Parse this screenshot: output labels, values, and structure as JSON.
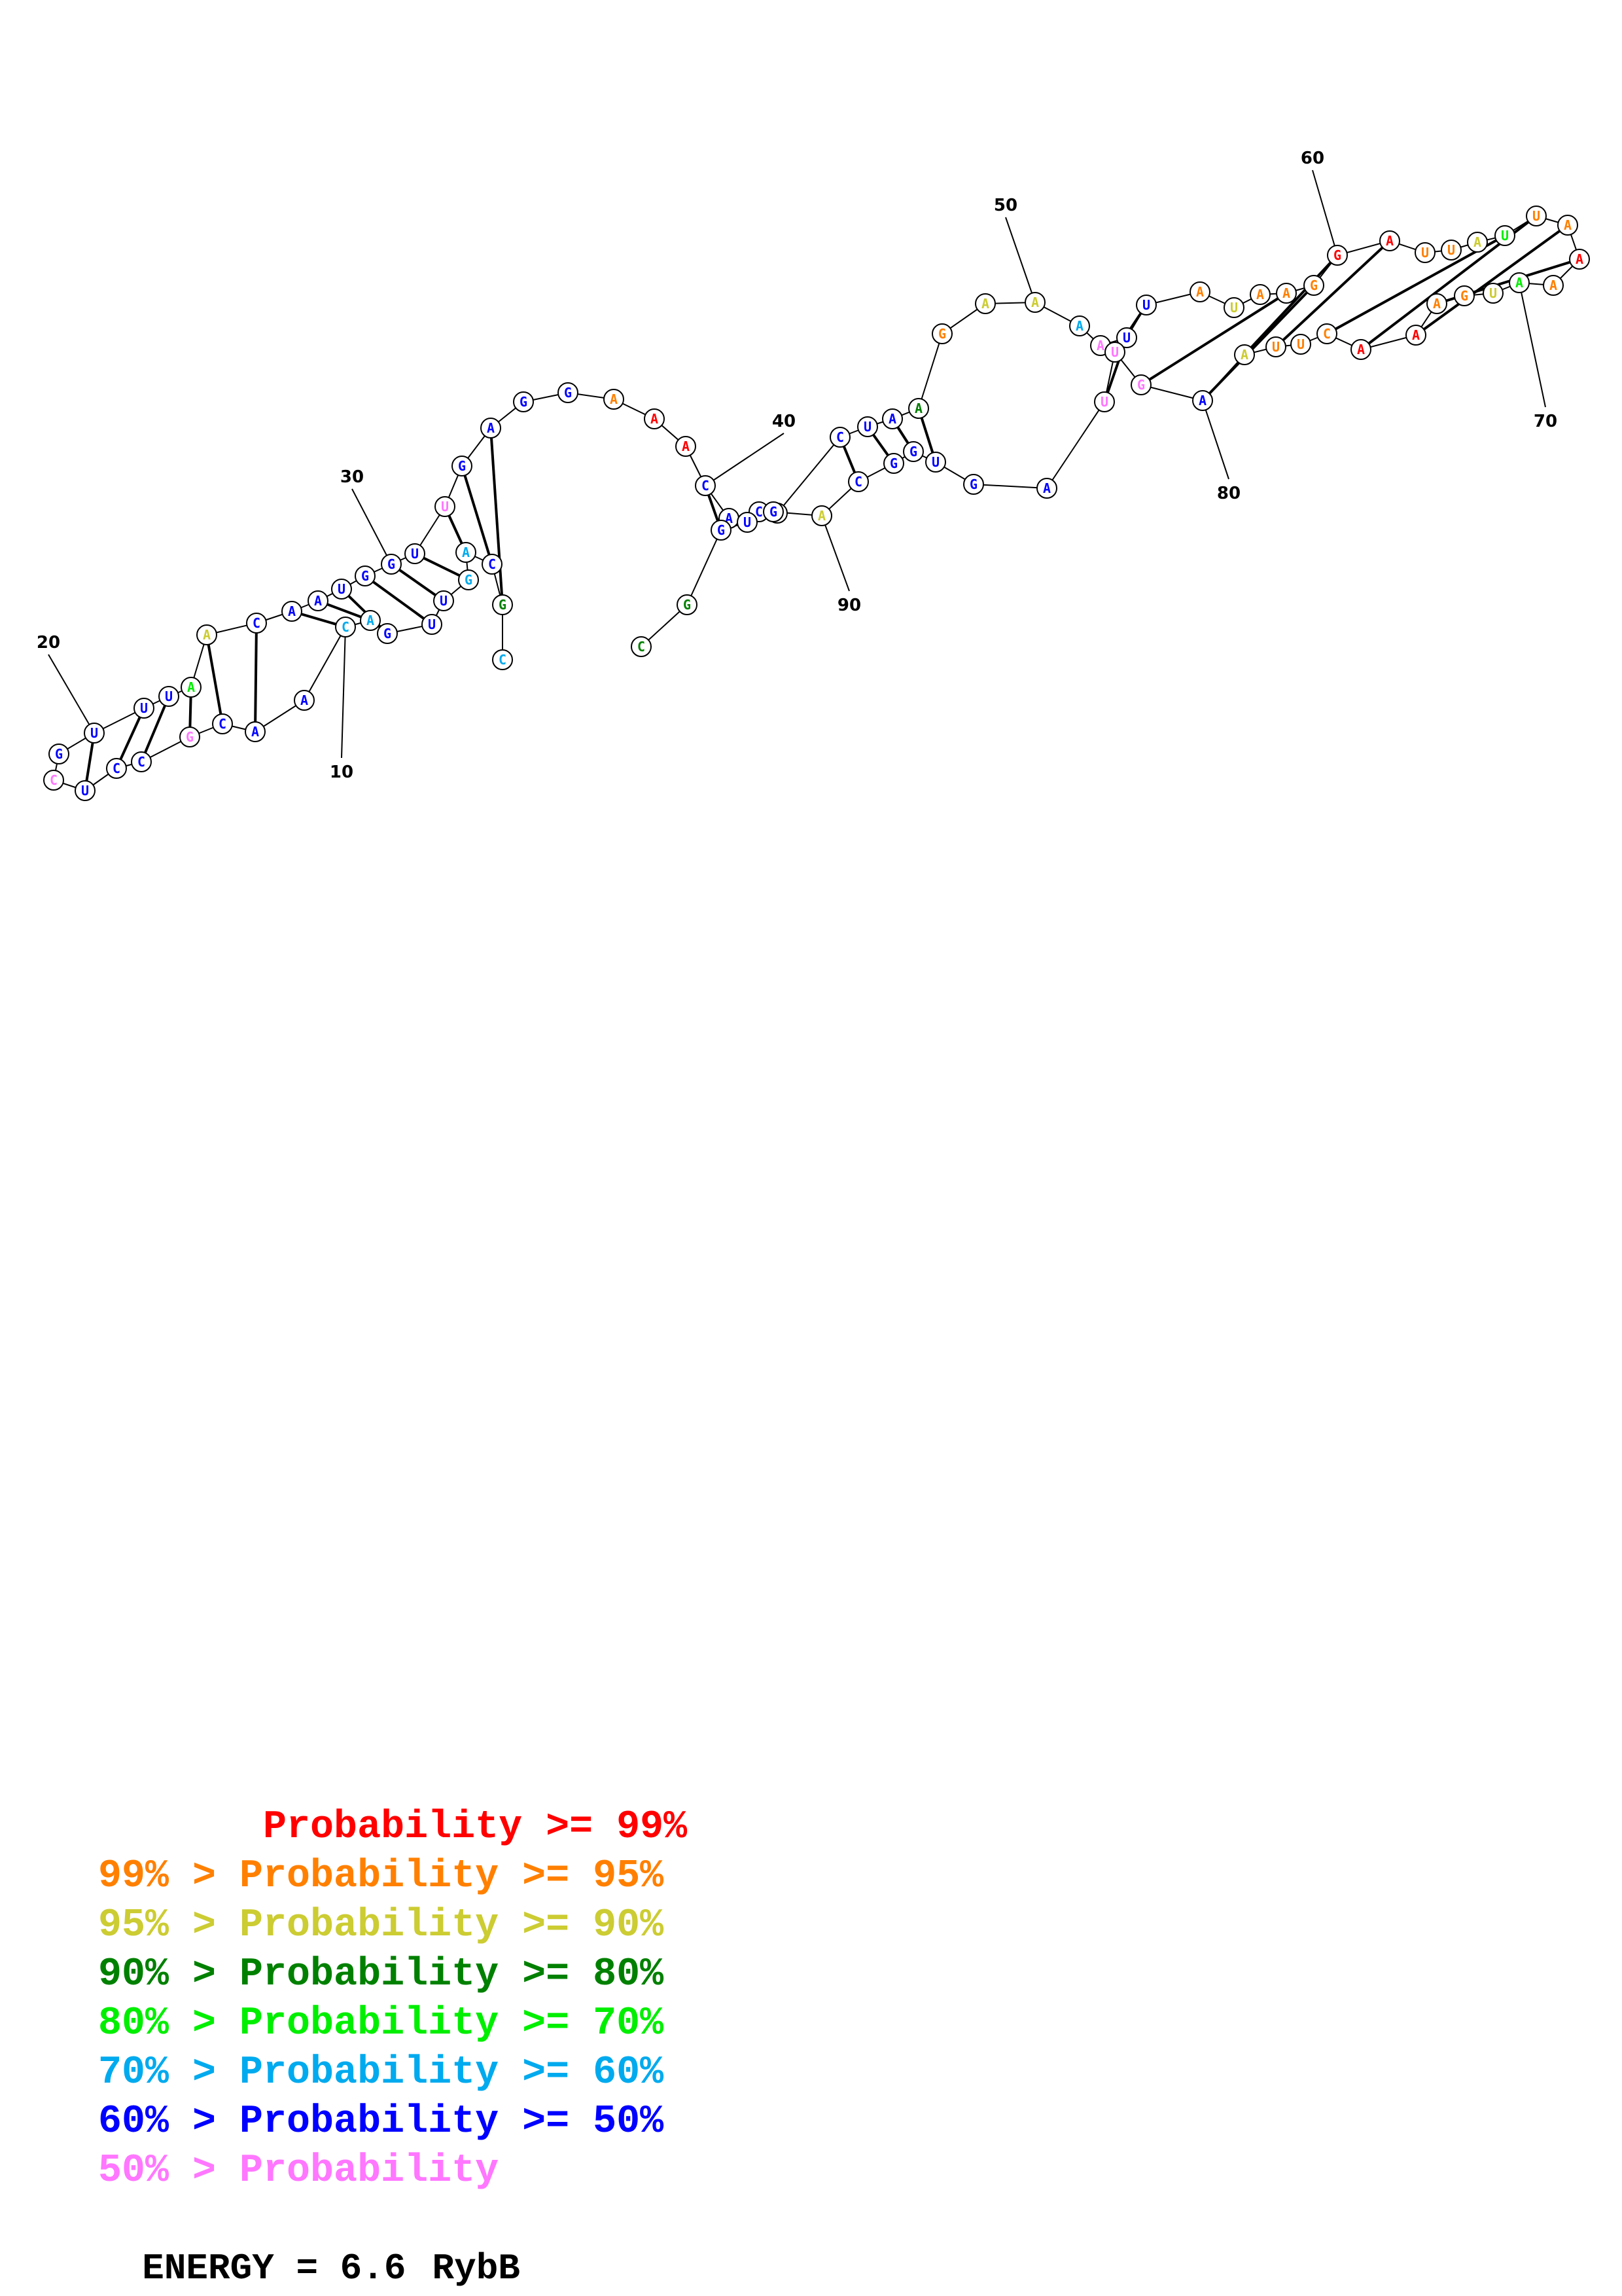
{
  "sequence": [
    {
      "n": 1,
      "b": "C",
      "c": "c6"
    },
    {
      "n": 2,
      "b": "G",
      "c": "c4"
    },
    {
      "n": 3,
      "b": "C",
      "c": "c7"
    },
    {
      "n": 4,
      "b": "A",
      "c": "c6"
    },
    {
      "n": 5,
      "b": "G",
      "c": "c6"
    },
    {
      "n": 6,
      "b": "U",
      "c": "c7"
    },
    {
      "n": 7,
      "b": "U",
      "c": "c7"
    },
    {
      "n": 8,
      "b": "G",
      "c": "c7"
    },
    {
      "n": 9,
      "b": "A",
      "c": "c6"
    },
    {
      "n": 10,
      "b": "C",
      "c": "c6"
    },
    {
      "n": 11,
      "b": "A",
      "c": "c7"
    },
    {
      "n": 12,
      "b": "A",
      "c": "c7"
    },
    {
      "n": 13,
      "b": "C",
      "c": "c7"
    },
    {
      "n": 14,
      "b": "G",
      "c": "c8"
    },
    {
      "n": 15,
      "b": "C",
      "c": "c7"
    },
    {
      "n": 16,
      "b": "C",
      "c": "c7"
    },
    {
      "n": 17,
      "b": "U",
      "c": "c7"
    },
    {
      "n": 18,
      "b": "C",
      "c": "c8"
    },
    {
      "n": 19,
      "b": "G",
      "c": "c7"
    },
    {
      "n": 20,
      "b": "U",
      "c": "c7"
    },
    {
      "n": 21,
      "b": "U",
      "c": "c7"
    },
    {
      "n": 22,
      "b": "U",
      "c": "c7"
    },
    {
      "n": 23,
      "b": "A",
      "c": "c5"
    },
    {
      "n": 24,
      "b": "A",
      "c": "c3"
    },
    {
      "n": 25,
      "b": "C",
      "c": "c7"
    },
    {
      "n": 26,
      "b": "A",
      "c": "c7"
    },
    {
      "n": 27,
      "b": "A",
      "c": "c7"
    },
    {
      "n": 28,
      "b": "U",
      "c": "c7"
    },
    {
      "n": 29,
      "b": "G",
      "c": "c7"
    },
    {
      "n": 30,
      "b": "G",
      "c": "c7"
    },
    {
      "n": 31,
      "b": "U",
      "c": "c7"
    },
    {
      "n": 32,
      "b": "U",
      "c": "c8"
    },
    {
      "n": 33,
      "b": "G",
      "c": "c7"
    },
    {
      "n": 34,
      "b": "A",
      "c": "c7"
    },
    {
      "n": 35,
      "b": "G",
      "c": "c7"
    },
    {
      "n": 36,
      "b": "G",
      "c": "c7"
    },
    {
      "n": 37,
      "b": "A",
      "c": "c2"
    },
    {
      "n": 38,
      "b": "A",
      "c": "c1"
    },
    {
      "n": 39,
      "b": "A",
      "c": "c1"
    },
    {
      "n": 40,
      "b": "C",
      "c": "c7"
    },
    {
      "n": 41,
      "b": "A",
      "c": "c7"
    },
    {
      "n": 42,
      "b": "C",
      "c": "c7"
    },
    {
      "n": 43,
      "b": "G",
      "c": "c7"
    },
    {
      "n": 44,
      "b": "C",
      "c": "c7"
    },
    {
      "n": 45,
      "b": "U",
      "c": "c7"
    },
    {
      "n": 46,
      "b": "A",
      "c": "c7"
    },
    {
      "n": 47,
      "b": "A",
      "c": "c4"
    },
    {
      "n": 48,
      "b": "G",
      "c": "c2"
    },
    {
      "n": 49,
      "b": "A",
      "c": "c3"
    },
    {
      "n": 50,
      "b": "A",
      "c": "c3"
    },
    {
      "n": 51,
      "b": "A",
      "c": "c6"
    },
    {
      "n": 52,
      "b": "A",
      "c": "c8"
    },
    {
      "n": 53,
      "b": "U",
      "c": "c7"
    },
    {
      "n": 54,
      "b": "U",
      "c": "c7"
    },
    {
      "n": 55,
      "b": "A",
      "c": "c2"
    },
    {
      "n": 56,
      "b": "U",
      "c": "c3"
    },
    {
      "n": 57,
      "b": "A",
      "c": "c2"
    },
    {
      "n": 58,
      "b": "A",
      "c": "c2"
    },
    {
      "n": 59,
      "b": "G",
      "c": "c2"
    },
    {
      "n": 60,
      "b": "G",
      "c": "c1"
    },
    {
      "n": 61,
      "b": "A",
      "c": "c1"
    },
    {
      "n": 62,
      "b": "U",
      "c": "c2"
    },
    {
      "n": 63,
      "b": "U",
      "c": "c2"
    },
    {
      "n": 64,
      "b": "A",
      "c": "c3"
    },
    {
      "n": 65,
      "b": "U",
      "c": "c5"
    },
    {
      "n": 66,
      "b": "U",
      "c": "c2"
    },
    {
      "n": 67,
      "b": "A",
      "c": "c2"
    },
    {
      "n": 68,
      "b": "A",
      "c": "c1"
    },
    {
      "n": 69,
      "b": "A",
      "c": "c2"
    },
    {
      "n": 70,
      "b": "A",
      "c": "c5"
    },
    {
      "n": 71,
      "b": "U",
      "c": "c3"
    },
    {
      "n": 72,
      "b": "G",
      "c": "c2"
    },
    {
      "n": 73,
      "b": "A",
      "c": "c2"
    },
    {
      "n": 74,
      "b": "A",
      "c": "c1"
    },
    {
      "n": 75,
      "b": "A",
      "c": "c1"
    },
    {
      "n": 76,
      "b": "C",
      "c": "c2"
    },
    {
      "n": 77,
      "b": "U",
      "c": "c2"
    },
    {
      "n": 78,
      "b": "U",
      "c": "c2"
    },
    {
      "n": 79,
      "b": "A",
      "c": "c3"
    },
    {
      "n": 80,
      "b": "A",
      "c": "c7"
    },
    {
      "n": 81,
      "b": "G",
      "c": "c8"
    },
    {
      "n": 82,
      "b": "U",
      "c": "c8"
    },
    {
      "n": 83,
      "b": "U",
      "c": "c8"
    },
    {
      "n": 84,
      "b": "A",
      "c": "c7"
    },
    {
      "n": 85,
      "b": "G",
      "c": "c7"
    },
    {
      "n": 86,
      "b": "U",
      "c": "c7"
    },
    {
      "n": 87,
      "b": "G",
      "c": "c7"
    },
    {
      "n": 88,
      "b": "G",
      "c": "c7"
    },
    {
      "n": 89,
      "b": "C",
      "c": "c7"
    },
    {
      "n": 90,
      "b": "A",
      "c": "c3"
    },
    {
      "n": 91,
      "b": "G",
      "c": "c7"
    },
    {
      "n": 92,
      "b": "U",
      "c": "c7"
    },
    {
      "n": 93,
      "b": "G",
      "c": "c7"
    },
    {
      "n": 94,
      "b": "G",
      "c": "c4"
    },
    {
      "n": 95,
      "b": "C",
      "c": "c4"
    }
  ],
  "pairs": [
    [
      2,
      34
    ],
    [
      3,
      33
    ],
    [
      4,
      32
    ],
    [
      5,
      31
    ],
    [
      6,
      30
    ],
    [
      7,
      29
    ],
    [
      8,
      28
    ],
    [
      9,
      27
    ],
    [
      10,
      26
    ],
    [
      12,
      25
    ],
    [
      13,
      24
    ],
    [
      14,
      23
    ],
    [
      15,
      22
    ],
    [
      16,
      21
    ],
    [
      17,
      20
    ],
    [
      40,
      93
    ],
    [
      41,
      92
    ],
    [
      42,
      91
    ],
    [
      44,
      89
    ],
    [
      45,
      88
    ],
    [
      46,
      87
    ],
    [
      47,
      86
    ],
    [
      53,
      83
    ],
    [
      54,
      82
    ],
    [
      58,
      81
    ],
    [
      59,
      80
    ],
    [
      60,
      79
    ],
    [
      61,
      78
    ],
    [
      65,
      76
    ],
    [
      66,
      75
    ],
    [
      67,
      74
    ],
    [
      68,
      73
    ]
  ],
  "position_labels": [
    {
      "n": 10,
      "text": "10"
    },
    {
      "n": 20,
      "text": "20"
    },
    {
      "n": 30,
      "text": "30"
    },
    {
      "n": 40,
      "text": "40"
    },
    {
      "n": 50,
      "text": "50"
    },
    {
      "n": 60,
      "text": "60"
    },
    {
      "n": 70,
      "text": "70"
    },
    {
      "n": 80,
      "text": "80"
    },
    {
      "n": 90,
      "text": "90"
    }
  ],
  "colors": {
    "c1": "#ff0000",
    "c2": "#ff8000",
    "c3": "#cccc33",
    "c4": "#008000",
    "c5": "#00ee00",
    "c6": "#00aaee",
    "c7": "#0000ff",
    "c8": "#ff77ff"
  },
  "legend": [
    {
      "prefix": "       ",
      "text": "Probability >= 99%",
      "color": "#ff0000"
    },
    {
      "prefix": "",
      "text": "99% > Probability >= 95%",
      "color": "#ff8000"
    },
    {
      "prefix": "",
      "text": "95% > Probability >= 90%",
      "color": "#cccc33"
    },
    {
      "prefix": "",
      "text": "90% > Probability >= 80%",
      "color": "#008000"
    },
    {
      "prefix": "",
      "text": "80% > Probability >= 70%",
      "color": "#00ee00"
    },
    {
      "prefix": "",
      "text": "70% > Probability >= 60%",
      "color": "#00aaee"
    },
    {
      "prefix": "",
      "text": "60% > Probability >= 50%",
      "color": "#0000ff"
    },
    {
      "prefix": "",
      "text": "50% > Probability",
      "color": "#ff77ff"
    }
  ],
  "energy": {
    "label": "ENERGY = 6.6",
    "name": "RybB"
  }
}
